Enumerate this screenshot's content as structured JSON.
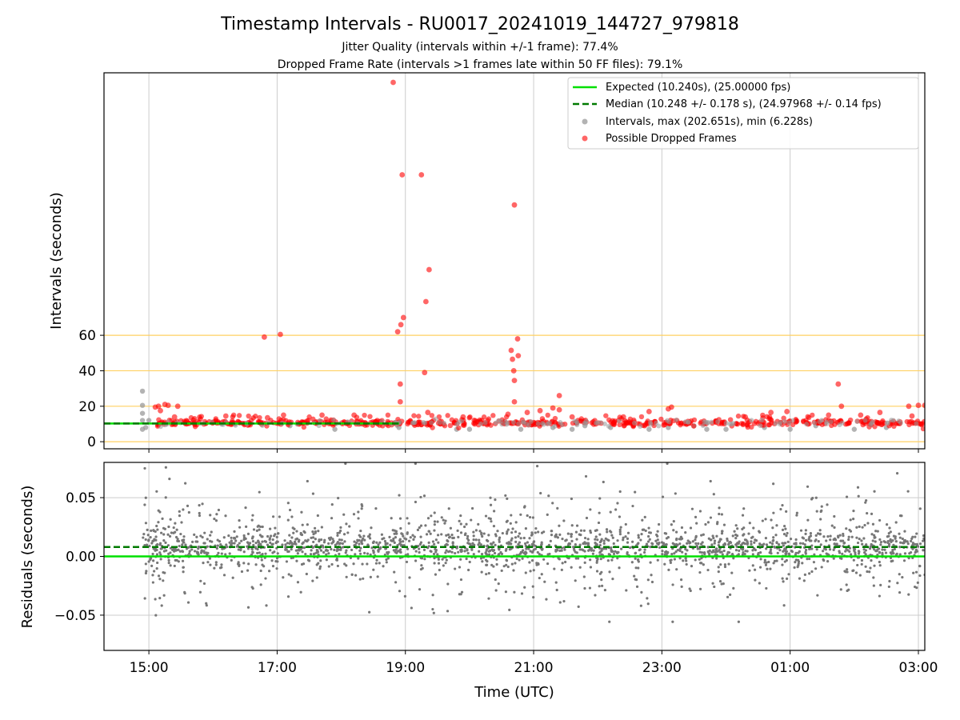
{
  "figure": {
    "title": "Timestamp Intervals - RU0017_20241019_144727_979818",
    "subtitle_1": "Jitter Quality (intervals within +/-1 frame): 77.4%",
    "subtitle_2": "Dropped Frame Rate (intervals >1 frames late within 50 FF files): 79.1%"
  },
  "colors": {
    "expected": "#00e000",
    "median": "#007a00",
    "intervals": "#999999",
    "dropped": "#ff0000",
    "residuals": "#777777",
    "reference_lines": "#ffd060",
    "grid": "#cccccc"
  },
  "chart_data": [
    {
      "type": "scatter",
      "panel": "top",
      "ylabel": "Intervals (seconds)",
      "xlabel": "",
      "ytick_labels": [
        "0",
        "20",
        "40",
        "60"
      ],
      "ytick_values": [
        0,
        20,
        40,
        60
      ],
      "ylim": [
        -4,
        208
      ],
      "xlim_hours": [
        14.3,
        27.1
      ],
      "reference_lines_y": [
        0,
        20,
        40,
        60
      ],
      "expected_y": 10.24,
      "median_y": 10.248,
      "grid_x": true,
      "legend_placement": "top-right",
      "legend": [
        "Expected (10.240s), (25.00000 fps)",
        "Median (10.248 +/- 0.178 s), (24.97968 +/- 0.14 fps)",
        "Intervals, max (202.651s), min (6.228s)",
        "Possible Dropped Frames"
      ],
      "series": [
        {
          "name": "Intervals, max (202.651s), min (6.228s)",
          "points": [
            [
              14.9,
              28.5
            ],
            [
              14.9,
              20.5
            ],
            [
              14.9,
              16
            ],
            [
              14.9,
              12
            ],
            [
              14.95,
              8
            ],
            [
              14.9,
              7
            ],
            [
              15.0,
              12
            ],
            [
              18.3,
              10
            ],
            [
              17.2,
              9
            ],
            [
              17.9,
              7
            ],
            [
              20.8,
              7
            ],
            [
              21.3,
              8
            ],
            [
              21.6,
              7
            ],
            [
              21.8,
              9
            ],
            [
              22.2,
              8
            ],
            [
              22.8,
              7
            ],
            [
              23.1,
              8
            ],
            [
              23.5,
              9
            ],
            [
              23.7,
              7
            ],
            [
              24.0,
              7
            ],
            [
              24.6,
              8
            ],
            [
              25.0,
              7
            ],
            [
              25.4,
              9
            ],
            [
              26.0,
              7
            ],
            [
              26.5,
              8
            ],
            [
              19.8,
              7
            ],
            [
              18.9,
              8
            ],
            [
              20.0,
              7
            ]
          ]
        },
        {
          "name": "Possible Dropped Frames",
          "points": [
            [
              18.81,
              202.6
            ],
            [
              18.95,
              150.5
            ],
            [
              19.25,
              150.5
            ],
            [
              20.7,
              133.5
            ],
            [
              19.37,
              97
            ],
            [
              19.32,
              79
            ],
            [
              18.97,
              70
            ],
            [
              18.93,
              66
            ],
            [
              18.88,
              62
            ],
            [
              16.8,
              59
            ],
            [
              17.05,
              60.5
            ],
            [
              20.75,
              58
            ],
            [
              20.65,
              51.5
            ],
            [
              20.76,
              48.5
            ],
            [
              20.67,
              46.5
            ],
            [
              20.69,
              40
            ],
            [
              19.3,
              39
            ],
            [
              20.7,
              34.5
            ],
            [
              18.92,
              32.5
            ],
            [
              25.75,
              32.5
            ],
            [
              21.4,
              26
            ],
            [
              18.92,
              22.5
            ],
            [
              20.7,
              22.5
            ],
            [
              15.25,
              21
            ],
            [
              15.3,
              20.5
            ],
            [
              15.45,
              20
            ],
            [
              15.15,
              20
            ],
            [
              15.1,
              19.5
            ],
            [
              23.15,
              19.5
            ],
            [
              21.3,
              19
            ],
            [
              25.8,
              20
            ],
            [
              27.0,
              20.5
            ],
            [
              27.1,
              20.5
            ],
            [
              26.85,
              20
            ],
            [
              21.4,
              18
            ],
            [
              23.1,
              18.5
            ],
            [
              19.35,
              16.5
            ],
            [
              20.9,
              16.5
            ],
            [
              24.7,
              16.5
            ],
            [
              22.8,
              17
            ],
            [
              24.95,
              17
            ],
            [
              26.4,
              16.5
            ],
            [
              20.6,
              15.5
            ],
            [
              21.1,
              17.5
            ],
            [
              15.18,
              17.5
            ],
            [
              16.2,
              14.5
            ],
            [
              17.1,
              15
            ],
            [
              17.7,
              15
            ],
            [
              18.2,
              15
            ],
            [
              25.6,
              15
            ],
            [
              26.1,
              15
            ],
            [
              26.9,
              14.5
            ],
            [
              15.4,
              14
            ],
            [
              21.6,
              14
            ],
            [
              22.4,
              14
            ],
            [
              24.3,
              14
            ],
            [
              16.85,
              13.5
            ],
            [
              19.9,
              14
            ]
          ],
          "band": {
            "x_start": 15.1,
            "x_end": 27.1,
            "y_center": 10.6,
            "y_spread": 1.8,
            "count": 620
          }
        }
      ]
    },
    {
      "type": "scatter",
      "panel": "bottom",
      "ylabel": "Residuals (seconds)",
      "xlabel": "Time (UTC)",
      "xtick_labels": [
        "15:00",
        "17:00",
        "19:00",
        "21:00",
        "23:00",
        "01:00",
        "03:00"
      ],
      "xtick_hours": [
        15,
        17,
        19,
        21,
        23,
        25,
        27
      ],
      "ytick_labels": [
        "0.05",
        "0.00",
        "−0.05"
      ],
      "ytick_values": [
        0.05,
        0.0,
        -0.05
      ],
      "ylim": [
        -0.08,
        0.08
      ],
      "xlim_hours": [
        14.3,
        27.1
      ],
      "expected_y": 0.0,
      "median_y": 0.008,
      "grid": true,
      "series": [
        {
          "name": "",
          "distribution": {
            "x_start": 14.9,
            "x_end": 27.1,
            "center": 0.008,
            "core_spread": 0.012,
            "tail_spread": 0.04,
            "count": 2200
          }
        }
      ]
    }
  ]
}
